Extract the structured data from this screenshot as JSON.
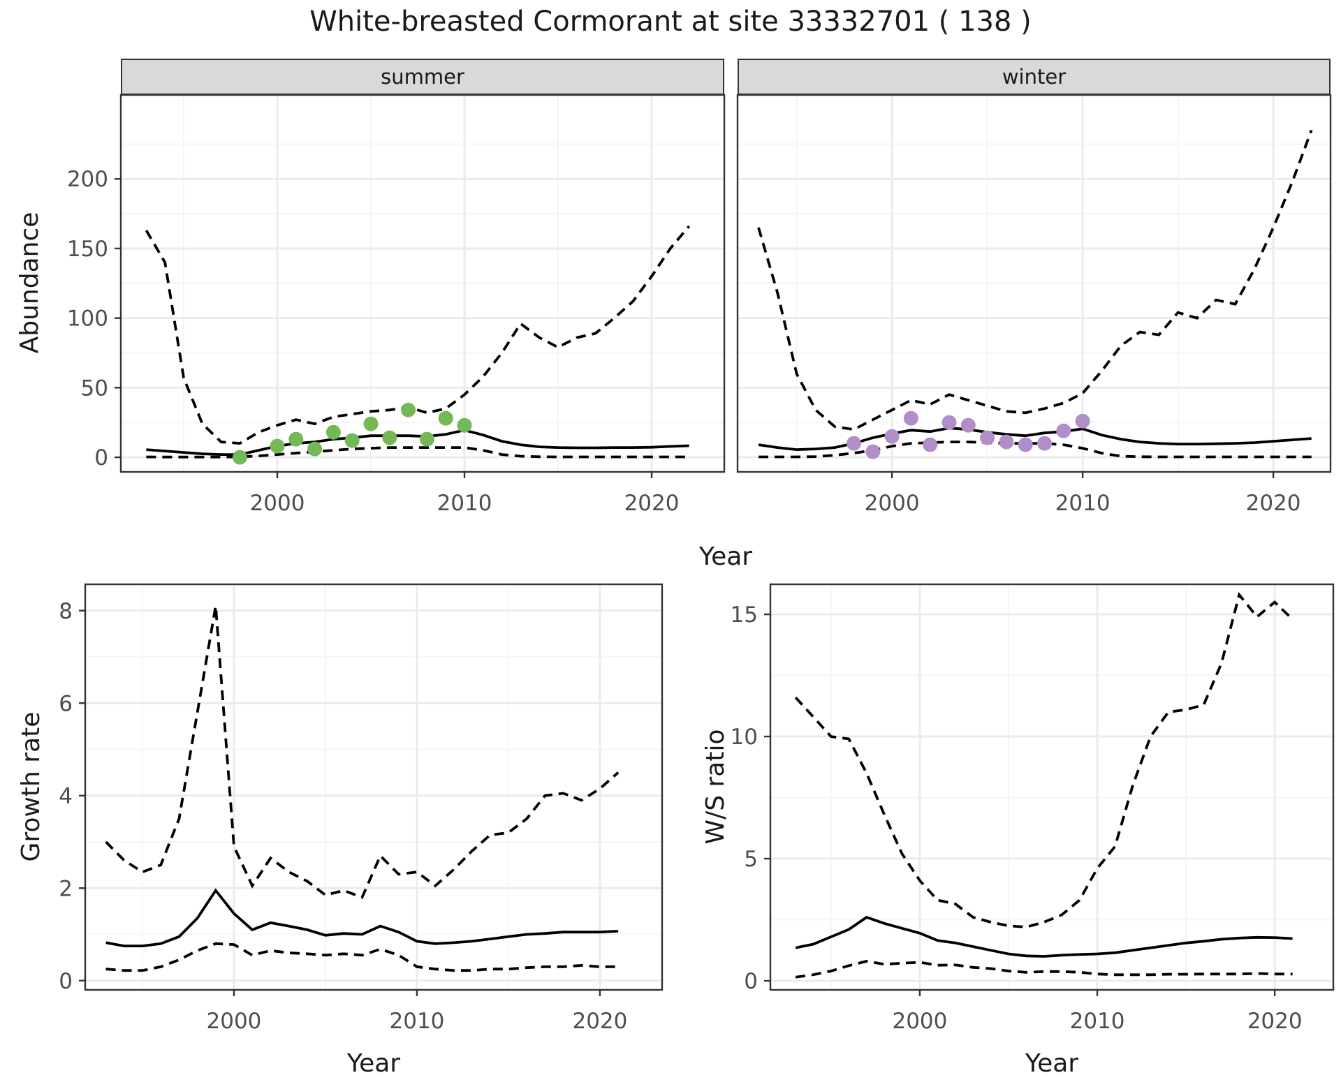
{
  "page": {
    "title": "White-breasted Cormorant at site 33332701 ( 138 )"
  },
  "colors": {
    "summer_points": "#74b857",
    "winter_points": "#b28ec9",
    "line": "#000000",
    "grid_major": "#ebebeb",
    "grid_minor": "#f5f5f5",
    "strip_bg": "#d9d9d9",
    "panel_border": "#333333",
    "tick_text": "#4d4d4d",
    "title_text": "#1a1a1a"
  },
  "chart_data": [
    {
      "id": "abundance_summer",
      "type": "line",
      "facet": "summer",
      "ylabel": "Abundance",
      "xlabel": "Year",
      "x_domain": [
        1991.64,
        2023.88
      ],
      "y_domain": [
        -10.5,
        260.3
      ],
      "x_ticks": [
        2000,
        2010,
        2020
      ],
      "x_minor": [
        1995,
        2005,
        2015
      ],
      "y_ticks": [
        0,
        50,
        100,
        150,
        200
      ],
      "y_minor": [
        25,
        75,
        125,
        175,
        225
      ],
      "series": [
        {
          "name": "upper 95% CI",
          "style": "dashed",
          "x": [
            1993,
            1994,
            1995,
            1996,
            1997,
            1998,
            1999,
            2000,
            2001,
            2002,
            2003,
            2004,
            2005,
            2006,
            2007,
            2008,
            2009,
            2010,
            2011,
            2012,
            2013,
            2014,
            2015,
            2016,
            2017,
            2018,
            2019,
            2020,
            2021,
            2022
          ],
          "y": [
            163,
            140,
            57,
            24,
            11,
            10,
            18,
            23,
            27,
            24,
            29,
            31,
            33,
            34,
            36,
            32,
            35,
            45,
            58,
            75,
            96,
            86,
            79,
            86,
            89,
            100,
            112,
            130,
            150,
            166
          ]
        },
        {
          "name": "median",
          "style": "solid",
          "x": [
            1993,
            1994,
            1995,
            1996,
            1997,
            1998,
            1999,
            2000,
            2001,
            2002,
            2003,
            2004,
            2005,
            2006,
            2007,
            2008,
            2009,
            2010,
            2011,
            2012,
            2013,
            2014,
            2015,
            2016,
            2017,
            2018,
            2019,
            2020,
            2021,
            2022
          ],
          "y": [
            5.5,
            4.5,
            3.5,
            2.5,
            2,
            2,
            5,
            8,
            10,
            11,
            13,
            14,
            15.5,
            15.5,
            15.5,
            15,
            16.5,
            19.5,
            16,
            11.5,
            9,
            7.5,
            7,
            6.8,
            6.8,
            7,
            7,
            7.2,
            7.8,
            8.3
          ]
        },
        {
          "name": "lower 95% CI",
          "style": "dashed",
          "x": [
            1993,
            1994,
            1995,
            1996,
            1997,
            1998,
            1999,
            2000,
            2001,
            2002,
            2003,
            2004,
            2005,
            2006,
            2007,
            2008,
            2009,
            2010,
            2011,
            2012,
            2013,
            2014,
            2015,
            2016,
            2017,
            2018,
            2019,
            2020,
            2021,
            2022
          ],
          "y": [
            0.3,
            0.2,
            0.2,
            0.2,
            0.2,
            0.3,
            1,
            2,
            3,
            4,
            5,
            6,
            6.5,
            7,
            7,
            7,
            7,
            7,
            5,
            2,
            0.8,
            0.4,
            0.3,
            0.3,
            0.3,
            0.3,
            0.3,
            0.3,
            0.3,
            0.3
          ]
        }
      ],
      "points": {
        "name": "observed summer counts",
        "color_key": "summer_points",
        "x": [
          1998,
          2000,
          2001,
          2002,
          2003,
          2004,
          2005,
          2006,
          2007,
          2008,
          2009,
          2010
        ],
        "y": [
          0,
          8,
          13,
          6,
          18,
          12,
          24,
          14,
          34,
          13,
          28,
          23
        ]
      }
    },
    {
      "id": "abundance_winter",
      "type": "line",
      "facet": "winter",
      "ylabel": "Abundance",
      "xlabel": "Year",
      "x_domain": [
        1991.9,
        2023.0
      ],
      "y_domain": [
        -10.5,
        260.3
      ],
      "x_ticks": [
        2000,
        2010,
        2020
      ],
      "x_minor": [
        1995,
        2005,
        2015
      ],
      "y_ticks": [
        0,
        50,
        100,
        150,
        200
      ],
      "y_minor": [
        25,
        75,
        125,
        175,
        225
      ],
      "series": [
        {
          "name": "upper 95% CI",
          "style": "dashed",
          "x": [
            1993,
            1994,
            1995,
            1996,
            1997,
            1998,
            1999,
            2000,
            2001,
            2002,
            2003,
            2004,
            2005,
            2006,
            2007,
            2008,
            2009,
            2010,
            2011,
            2012,
            2013,
            2014,
            2015,
            2016,
            2017,
            2018,
            2019,
            2020,
            2021,
            2022
          ],
          "y": [
            165,
            118,
            60,
            34,
            22,
            20,
            27,
            34,
            41,
            38,
            45,
            41,
            37,
            33,
            32,
            35,
            39,
            46,
            62,
            80,
            90,
            88,
            104,
            100,
            113,
            110,
            135,
            165,
            198,
            235
          ]
        },
        {
          "name": "median",
          "style": "solid",
          "x": [
            1993,
            1994,
            1995,
            1996,
            1997,
            1998,
            1999,
            2000,
            2001,
            2002,
            2003,
            2004,
            2005,
            2006,
            2007,
            2008,
            2009,
            2010,
            2011,
            2012,
            2013,
            2014,
            2015,
            2016,
            2017,
            2018,
            2019,
            2020,
            2021,
            2022
          ],
          "y": [
            9,
            7,
            5.5,
            6,
            7,
            10,
            14,
            17,
            19.5,
            18.5,
            21,
            20,
            18,
            16.5,
            15.5,
            17.5,
            18.5,
            20.5,
            16,
            13,
            11,
            10,
            9.5,
            9.5,
            9.7,
            10,
            10.5,
            11.5,
            12.5,
            13.5
          ]
        },
        {
          "name": "lower 95% CI",
          "style": "dashed",
          "x": [
            1993,
            1994,
            1995,
            1996,
            1997,
            1998,
            1999,
            2000,
            2001,
            2002,
            2003,
            2004,
            2005,
            2006,
            2007,
            2008,
            2009,
            2010,
            2011,
            2012,
            2013,
            2014,
            2015,
            2016,
            2017,
            2018,
            2019,
            2020,
            2021,
            2022
          ],
          "y": [
            0.3,
            0.3,
            0.3,
            0.5,
            1.5,
            3,
            5,
            8,
            10,
            10.5,
            11,
            11,
            10.5,
            10,
            10,
            10,
            9,
            6.5,
            3,
            0.8,
            0.4,
            0.3,
            0.3,
            0.3,
            0.3,
            0.3,
            0.3,
            0.3,
            0.3,
            0.3
          ]
        }
      ],
      "points": {
        "name": "observed winter counts",
        "color_key": "winter_points",
        "x": [
          1998,
          1999,
          2000,
          2001,
          2002,
          2003,
          2004,
          2005,
          2006,
          2007,
          2008,
          2009,
          2010
        ],
        "y": [
          10,
          4,
          15,
          28,
          9,
          25,
          23,
          14,
          11,
          9,
          10,
          19,
          26
        ]
      }
    },
    {
      "id": "growth_rate",
      "type": "line",
      "facet": null,
      "ylabel": "Growth rate",
      "xlabel": "Year",
      "x_domain": [
        1991.87,
        2023.4
      ],
      "y_domain": [
        -0.2,
        8.57
      ],
      "x_ticks": [
        2000,
        2010,
        2020
      ],
      "x_minor": [
        1995,
        2005,
        2015
      ],
      "y_ticks": [
        0,
        2,
        4,
        6,
        8
      ],
      "y_minor": [
        1,
        3,
        5,
        7
      ],
      "series": [
        {
          "name": "upper 95% CI",
          "style": "dashed",
          "x": [
            1993,
            1994,
            1995,
            1996,
            1997,
            1998,
            1999,
            2000,
            2001,
            2002,
            2003,
            2004,
            2005,
            2006,
            2007,
            2008,
            2009,
            2010,
            2011,
            2012,
            2013,
            2014,
            2015,
            2016,
            2017,
            2018,
            2019,
            2020,
            2021
          ],
          "y": [
            3.0,
            2.6,
            2.35,
            2.5,
            3.5,
            5.8,
            8.1,
            2.9,
            2.05,
            2.65,
            2.35,
            2.15,
            1.85,
            1.95,
            1.8,
            2.7,
            2.3,
            2.35,
            2.05,
            2.4,
            2.8,
            3.15,
            3.2,
            3.5,
            4.0,
            4.05,
            3.9,
            4.15,
            4.5
          ]
        },
        {
          "name": "median",
          "style": "solid",
          "x": [
            1993,
            1994,
            1995,
            1996,
            1997,
            1998,
            1999,
            2000,
            2001,
            2002,
            2003,
            2004,
            2005,
            2006,
            2007,
            2008,
            2009,
            2010,
            2011,
            2012,
            2013,
            2014,
            2015,
            2016,
            2017,
            2018,
            2019,
            2020,
            2021
          ],
          "y": [
            0.82,
            0.75,
            0.75,
            0.8,
            0.95,
            1.35,
            1.95,
            1.45,
            1.1,
            1.25,
            1.18,
            1.1,
            0.98,
            1.02,
            1.0,
            1.18,
            1.05,
            0.85,
            0.8,
            0.82,
            0.85,
            0.9,
            0.95,
            1.0,
            1.02,
            1.05,
            1.05,
            1.05,
            1.07
          ]
        },
        {
          "name": "lower 95% CI",
          "style": "dashed",
          "x": [
            1993,
            1994,
            1995,
            1996,
            1997,
            1998,
            1999,
            2000,
            2001,
            2002,
            2003,
            2004,
            2005,
            2006,
            2007,
            2008,
            2009,
            2010,
            2011,
            2012,
            2013,
            2014,
            2015,
            2016,
            2017,
            2018,
            2019,
            2020,
            2021
          ],
          "y": [
            0.25,
            0.22,
            0.22,
            0.3,
            0.45,
            0.65,
            0.8,
            0.78,
            0.55,
            0.65,
            0.6,
            0.58,
            0.55,
            0.58,
            0.55,
            0.68,
            0.55,
            0.3,
            0.25,
            0.22,
            0.22,
            0.25,
            0.25,
            0.28,
            0.3,
            0.3,
            0.33,
            0.3,
            0.3
          ]
        }
      ],
      "points": null
    },
    {
      "id": "ws_ratio",
      "type": "line",
      "facet": null,
      "ylabel": "W/S ratio",
      "xlabel": "Year",
      "x_domain": [
        1991.58,
        2023.3
      ],
      "y_domain": [
        -0.37,
        16.23
      ],
      "x_ticks": [
        2000,
        2010,
        2020
      ],
      "x_minor": [
        1995,
        2005,
        2015
      ],
      "y_ticks": [
        0,
        5,
        10,
        15
      ],
      "y_minor": [
        2.5,
        7.5,
        12.5
      ],
      "series": [
        {
          "name": "upper 95% CI",
          "style": "dashed",
          "x": [
            1993,
            1994,
            1995,
            1996,
            1997,
            1998,
            1999,
            2000,
            2001,
            2002,
            2003,
            2004,
            2005,
            2006,
            2007,
            2008,
            2009,
            2010,
            2011,
            2012,
            2013,
            2014,
            2015,
            2016,
            2017,
            2018,
            2019,
            2020,
            2021
          ],
          "y": [
            11.6,
            10.8,
            10.0,
            9.9,
            8.5,
            6.8,
            5.2,
            4.1,
            3.3,
            3.15,
            2.6,
            2.4,
            2.25,
            2.2,
            2.4,
            2.7,
            3.3,
            4.6,
            5.5,
            8.0,
            10.0,
            11.0,
            11.1,
            11.3,
            13.0,
            15.8,
            14.9,
            15.5,
            14.8
          ]
        },
        {
          "name": "median",
          "style": "solid",
          "x": [
            1993,
            1994,
            1995,
            1996,
            1997,
            1998,
            1999,
            2000,
            2001,
            2002,
            2003,
            2004,
            2005,
            2006,
            2007,
            2008,
            2009,
            2010,
            2011,
            2012,
            2013,
            2014,
            2015,
            2016,
            2017,
            2018,
            2019,
            2020,
            2021
          ],
          "y": [
            1.35,
            1.5,
            1.8,
            2.1,
            2.6,
            2.35,
            2.15,
            1.95,
            1.65,
            1.55,
            1.4,
            1.25,
            1.1,
            1.02,
            1.0,
            1.05,
            1.08,
            1.1,
            1.15,
            1.25,
            1.35,
            1.45,
            1.55,
            1.62,
            1.7,
            1.75,
            1.78,
            1.77,
            1.73
          ]
        },
        {
          "name": "lower 95% CI",
          "style": "dashed",
          "x": [
            1993,
            1994,
            1995,
            1996,
            1997,
            1998,
            1999,
            2000,
            2001,
            2002,
            2003,
            2004,
            2005,
            2006,
            2007,
            2008,
            2009,
            2010,
            2011,
            2012,
            2013,
            2014,
            2015,
            2016,
            2017,
            2018,
            2019,
            2020,
            2021
          ],
          "y": [
            0.15,
            0.25,
            0.4,
            0.62,
            0.8,
            0.68,
            0.72,
            0.76,
            0.64,
            0.65,
            0.55,
            0.5,
            0.4,
            0.35,
            0.38,
            0.38,
            0.35,
            0.28,
            0.25,
            0.25,
            0.25,
            0.27,
            0.27,
            0.28,
            0.28,
            0.28,
            0.3,
            0.28,
            0.28
          ]
        }
      ],
      "points": null
    }
  ]
}
